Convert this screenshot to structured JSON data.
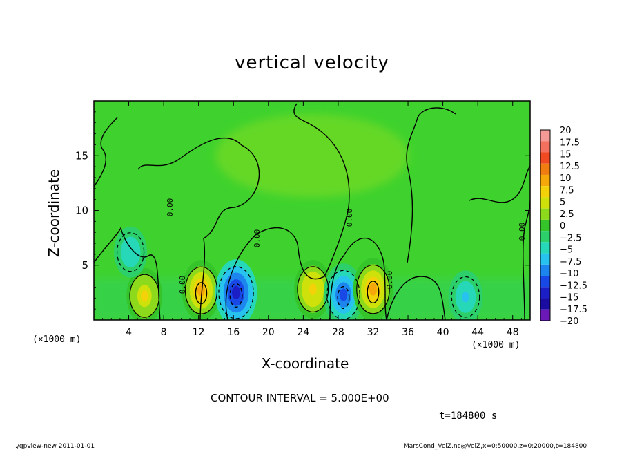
{
  "chart_data": {
    "type": "heatmap",
    "title": "vertical velocity",
    "xlabel": "X-coordinate",
    "ylabel": "Z-coordinate",
    "x_unit_label": "(×1000 m)",
    "x_unit_label_right": "(×1000 m)",
    "xlim": [
      0,
      50
    ],
    "ylim": [
      0,
      20
    ],
    "x_ticks": [
      4,
      8,
      12,
      16,
      20,
      24,
      28,
      32,
      36,
      40,
      44,
      48
    ],
    "y_ticks": [
      5,
      10,
      15
    ],
    "colorbar": {
      "levels": [
        20,
        17.5,
        15,
        12.5,
        10,
        7.5,
        5,
        2.5,
        0,
        -2.5,
        -5,
        -7.5,
        -10,
        -12.5,
        -15,
        -17.5,
        -20
      ],
      "colors": [
        "#f49a96",
        "#f36f5e",
        "#f04a22",
        "#f07d10",
        "#f5a80a",
        "#f3d20a",
        "#cfe10b",
        "#8dd91c",
        "#35c52a",
        "#2ccf6a",
        "#27d8b8",
        "#28c2ee",
        "#1c86ee",
        "#1848e6",
        "#1a1ec4",
        "#1a0ca0",
        "#6a19b6"
      ]
    },
    "contour_label": "0.00",
    "features": [
      {
        "x": 5.8,
        "z": 2.2,
        "w": 7.5,
        "kind": "updraft"
      },
      {
        "x": 12.3,
        "z": 2.7,
        "w": 10,
        "kind": "updraft"
      },
      {
        "x": 16.3,
        "z": 2.5,
        "w": -13,
        "kind": "downdraft"
      },
      {
        "x": 25.1,
        "z": 2.8,
        "w": 9,
        "kind": "updraft"
      },
      {
        "x": 28.6,
        "z": 2.3,
        "w": -11,
        "kind": "downdraft"
      },
      {
        "x": 32.0,
        "z": 2.8,
        "w": 11,
        "kind": "updraft"
      },
      {
        "x": 42.6,
        "z": 2.1,
        "w": -6,
        "kind": "downdraft"
      },
      {
        "x": 4.2,
        "z": 6.2,
        "w": -5,
        "kind": "downdraft"
      }
    ]
  },
  "annotations": {
    "contour_interval": "CONTOUR INTERVAL = 5.000E+00",
    "time": "t=184800 s",
    "footer_left": "./gpview-new  2011-01-01",
    "footer_right": "MarsCond_VelZ.nc@VelZ,x=0:50000,z=0:20000,t=184800"
  }
}
